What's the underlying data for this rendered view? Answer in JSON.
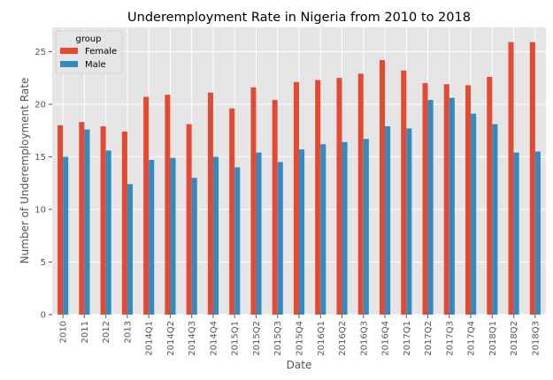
{
  "chart_data": {
    "type": "bar",
    "title": "Underemployment Rate in Nigeria from 2010 to 2018",
    "xlabel": "Date",
    "ylabel": "Number of Underemployment Rate",
    "ylim": [
      0,
      27.3
    ],
    "yticks": [
      0,
      5,
      10,
      15,
      20,
      25
    ],
    "grid": true,
    "legend": {
      "title": "group",
      "position": "top-left"
    },
    "categories": [
      "2010",
      "2011",
      "2012",
      "2013",
      "2014Q1",
      "2014Q2",
      "2014Q3",
      "2014Q4",
      "2015Q1",
      "2015Q2",
      "2015Q3",
      "2015Q4",
      "2016Q1",
      "2016Q2",
      "2016Q3",
      "2016Q4",
      "2017Q1",
      "2017Q2",
      "2017Q3",
      "2017Q4",
      "2018Q1",
      "2018Q2",
      "2018Q3"
    ],
    "series": [
      {
        "name": "Female",
        "color": "#E24A33",
        "values": [
          18.0,
          18.3,
          17.9,
          17.4,
          20.7,
          20.9,
          18.1,
          21.1,
          19.6,
          21.6,
          20.4,
          22.1,
          22.3,
          22.5,
          22.9,
          24.2,
          23.2,
          22.0,
          21.9,
          21.8,
          22.6,
          25.9,
          25.9
        ]
      },
      {
        "name": "Male",
        "color": "#348ABD",
        "values": [
          15.0,
          17.6,
          15.6,
          12.4,
          14.7,
          14.9,
          13.0,
          15.0,
          14.0,
          15.4,
          14.5,
          15.7,
          16.2,
          16.4,
          16.7,
          17.9,
          17.7,
          20.4,
          20.6,
          19.1,
          18.1,
          15.4,
          15.5
        ]
      }
    ]
  }
}
